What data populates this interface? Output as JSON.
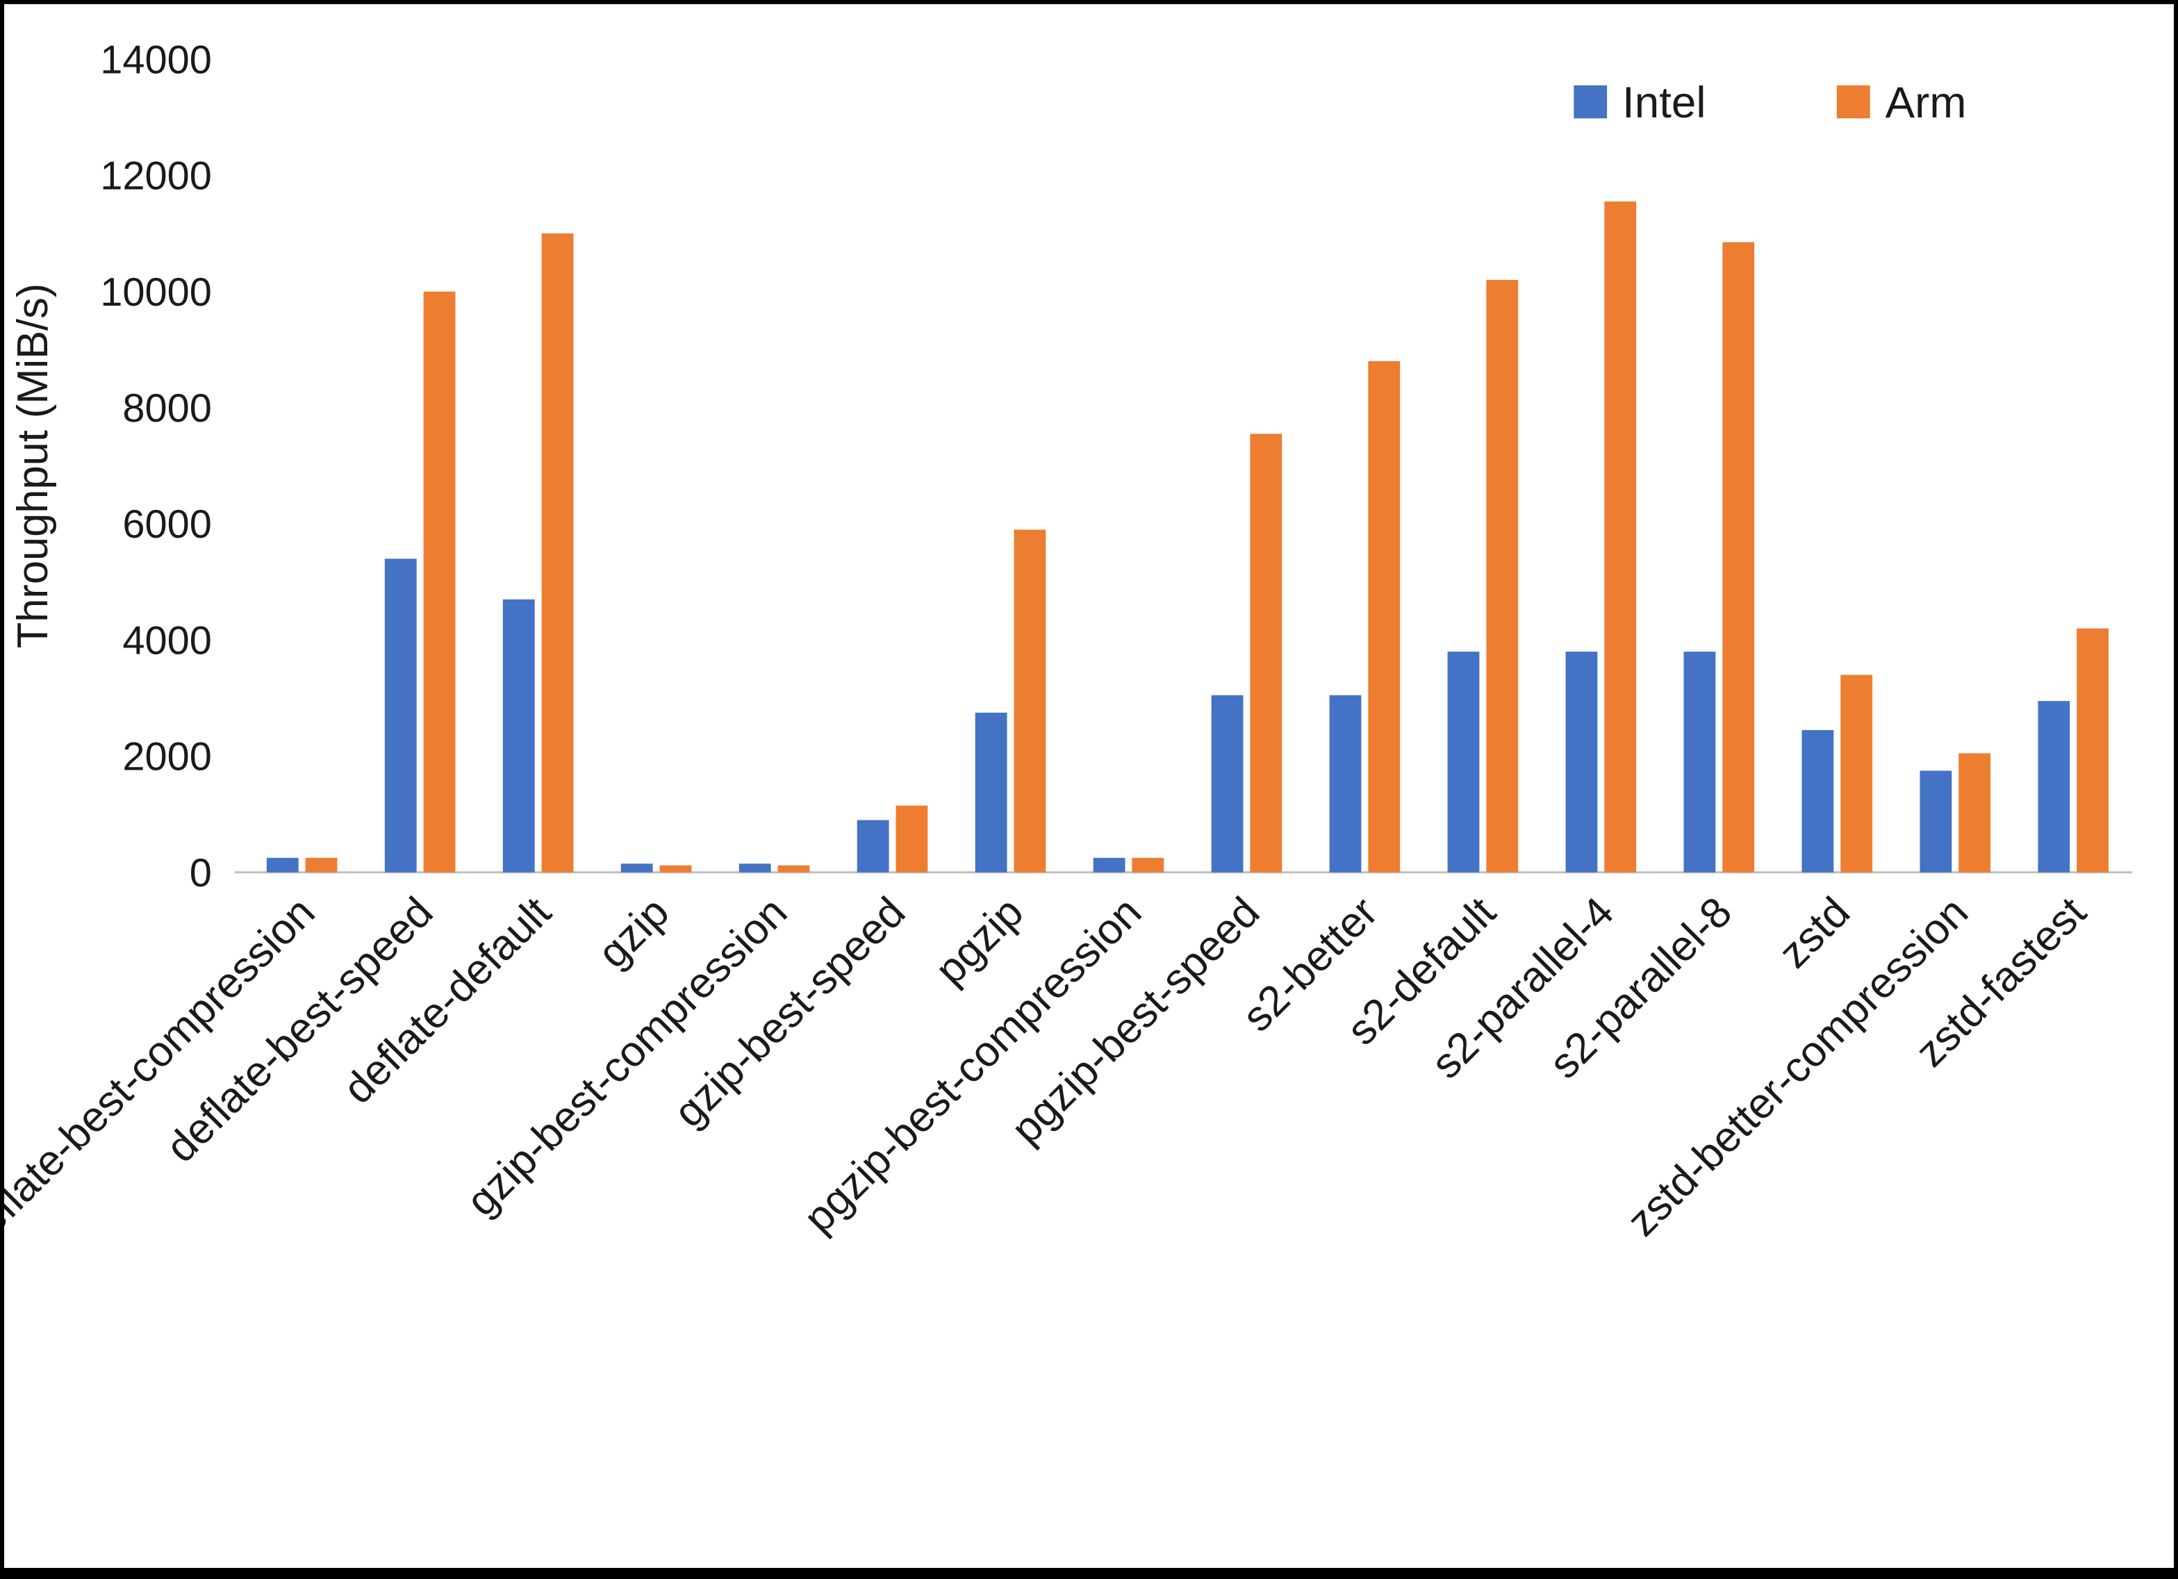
{
  "page": {
    "background": "#ffffff",
    "border_color": "#000000"
  },
  "chart_data": {
    "type": "bar",
    "title": "",
    "xlabel": "",
    "ylabel": "Throughput (MiB/s)",
    "ylim": [
      0,
      14000
    ],
    "ytick_step": 2000,
    "grid": false,
    "legend_position": "top-right",
    "axis_line_color": "#bfbfbf",
    "categories": [
      "deflate-best-compression",
      "deflate-best-speed",
      "deflate-default",
      "gzip",
      "gzip-best-compression",
      "gzip-best-speed",
      "pgzip",
      "pgzip-best-compression",
      "pgzip-best-speed",
      "s2-better",
      "s2-default",
      "s2-parallel-4",
      "s2-parallel-8",
      "zstd",
      "zstd-better-compression",
      "zstd-fastest"
    ],
    "series": [
      {
        "name": "Intel",
        "color": "#4472C4",
        "values": [
          250,
          5400,
          4700,
          150,
          150,
          900,
          2750,
          250,
          3050,
          3050,
          3800,
          3800,
          3800,
          2450,
          1750,
          2950
        ]
      },
      {
        "name": "Arm",
        "color": "#ED7D31",
        "values": [
          250,
          10000,
          11000,
          120,
          120,
          1150,
          5900,
          250,
          7550,
          8800,
          10200,
          11550,
          10850,
          3400,
          2050,
          4200
        ]
      }
    ]
  }
}
